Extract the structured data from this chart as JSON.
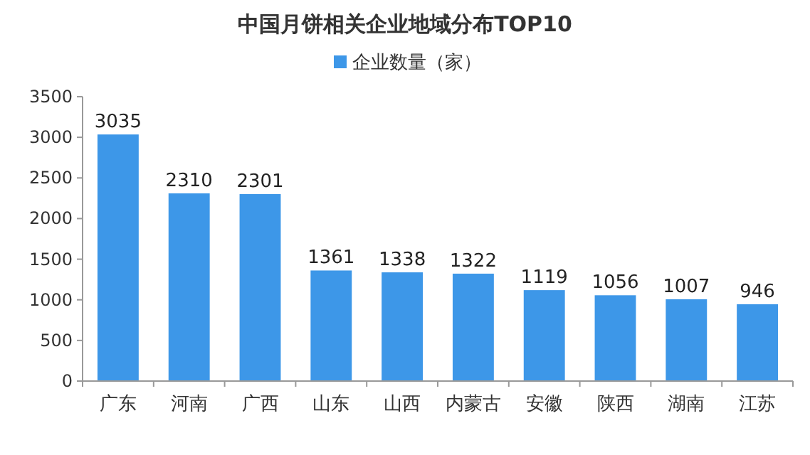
{
  "chart_data": {
    "type": "bar",
    "title": "中国月饼相关企业地域分布TOP10",
    "categories": [
      "广东",
      "河南",
      "广西",
      "山东",
      "山西",
      "内蒙古",
      "安徽",
      "陕西",
      "湖南",
      "江苏"
    ],
    "series": [
      {
        "name": "企业数量（家）",
        "color": "#3d97e8",
        "values": [
          3035,
          2310,
          2301,
          1361,
          1338,
          1322,
          1119,
          1056,
          1007,
          946
        ]
      }
    ],
    "ylim": [
      0,
      3500
    ],
    "yticks": [
      0,
      500,
      1000,
      1500,
      2000,
      2500,
      3000,
      3500
    ],
    "data_labels": true,
    "legend": "top",
    "grid": false
  }
}
